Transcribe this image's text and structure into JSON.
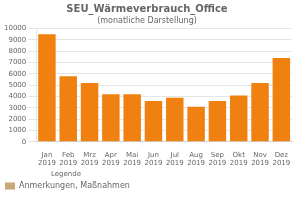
{
  "chart_data": {
    "type": "bar",
    "title": "SEU_Wärmeverbrauch_Office",
    "subtitle": "(monatliche Darstellung)",
    "categories": [
      "Jan\n2019",
      "Feb\n2019",
      "Mrz\n2019",
      "Apr\n2019",
      "Mai\n2019",
      "Jun\n2019",
      "Jul\n2019",
      "Aug\n2019",
      "Sep\n2019",
      "Okt\n2019",
      "Nov\n2019",
      "Dez\n2019"
    ],
    "series": [
      {
        "color": "#f08010",
        "values": [
          9500,
          5800,
          5200,
          4200,
          4200,
          3600,
          3900,
          3100,
          3600,
          4100,
          5200,
          7400
        ]
      },
      {
        "name": "Anmerkungen, Maßnahmen",
        "color": "#c8a878",
        "values": [
          null,
          null,
          null,
          null,
          null,
          null,
          null,
          null,
          null,
          null,
          null,
          null
        ]
      }
    ],
    "annotations": [
      "Legende"
    ],
    "ylim": [
      0,
      10000
    ],
    "yticks": [
      0,
      1000,
      2000,
      3000,
      4000,
      5000,
      6000,
      7000,
      8000,
      9000,
      10000
    ],
    "grid": true,
    "legend": "lower left"
  }
}
